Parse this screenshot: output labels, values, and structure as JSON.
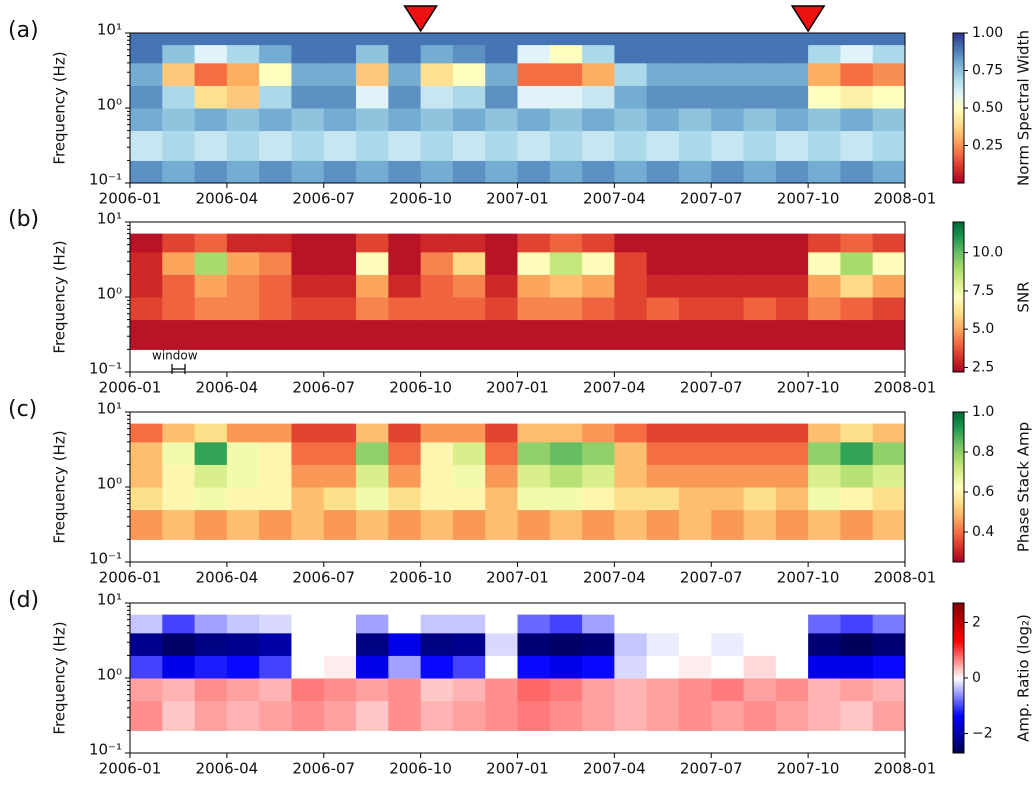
{
  "chart_data": [
    {
      "type": "heatmap",
      "panel_label": "(a)",
      "ylabel": "Frequency (Hz)",
      "colorbar_label": "Norm Spectral Width",
      "colormap": "RdYlBu",
      "zlim": [
        0,
        1
      ],
      "colorbar_ticks": [
        0.25,
        {
          "value": 0.5,
          "label": "0.50"
        },
        0.75,
        {
          "value": 1,
          "label": "1.00"
        }
      ],
      "xlim": [
        "2006-01",
        "2008-01"
      ],
      "xticks": [
        "2006-01",
        "2006-04",
        "2006-07",
        "2006-10",
        "2007-01",
        "2007-04",
        "2007-07",
        "2007-10",
        "2008-01"
      ],
      "log_y": true,
      "ylim": [
        0.1,
        10
      ],
      "yticks": [
        {
          "value": 0.1,
          "label": "10⁻¹"
        },
        {
          "value": 1,
          "label": "10⁰"
        },
        {
          "value": 10,
          "label": "10¹"
        }
      ],
      "markers": [
        "2006-10",
        "2007-10"
      ],
      "marker_color": "#ee1111",
      "x": [
        "2006-01",
        "2006-02",
        "2006-03",
        "2006-04",
        "2006-05",
        "2006-06",
        "2006-07",
        "2006-08",
        "2006-09",
        "2006-10",
        "2006-11",
        "2006-12",
        "2007-01",
        "2007-02",
        "2007-03",
        "2007-04",
        "2007-05",
        "2007-06",
        "2007-07",
        "2007-08",
        "2007-09",
        "2007-10",
        "2007-11",
        "2007-12"
      ],
      "y_edges": [
        0.1,
        0.2,
        0.5,
        1,
        2,
        4,
        7,
        10
      ],
      "z": [
        [
          0.85,
          0.8,
          0.85,
          0.8,
          0.85,
          0.8,
          0.85,
          0.8,
          0.85,
          0.8,
          0.85,
          0.8,
          0.85,
          0.8,
          0.85,
          0.8,
          0.85,
          0.8,
          0.85,
          0.8,
          0.85,
          0.8,
          0.85,
          0.8
        ],
        [
          0.65,
          0.7,
          0.65,
          0.7,
          0.65,
          0.7,
          0.65,
          0.7,
          0.65,
          0.7,
          0.65,
          0.7,
          0.65,
          0.7,
          0.65,
          0.7,
          0.65,
          0.7,
          0.65,
          0.7,
          0.65,
          0.7,
          0.65,
          0.7
        ],
        [
          0.8,
          0.75,
          0.8,
          0.75,
          0.8,
          0.75,
          0.8,
          0.75,
          0.8,
          0.75,
          0.8,
          0.75,
          0.8,
          0.75,
          0.8,
          0.75,
          0.8,
          0.75,
          0.8,
          0.75,
          0.8,
          0.75,
          0.8,
          0.75
        ],
        [
          0.85,
          0.7,
          0.4,
          0.35,
          0.7,
          0.85,
          0.85,
          0.6,
          0.85,
          0.65,
          0.7,
          0.85,
          0.6,
          0.6,
          0.65,
          0.8,
          0.85,
          0.85,
          0.85,
          0.85,
          0.85,
          0.5,
          0.45,
          0.5
        ],
        [
          0.8,
          0.35,
          0.2,
          0.3,
          0.5,
          0.8,
          0.8,
          0.35,
          0.8,
          0.4,
          0.5,
          0.8,
          0.2,
          0.2,
          0.3,
          0.7,
          0.8,
          0.8,
          0.8,
          0.8,
          0.8,
          0.3,
          0.2,
          0.25
        ],
        [
          0.9,
          0.75,
          0.6,
          0.7,
          0.8,
          0.9,
          0.9,
          0.75,
          0.9,
          0.8,
          0.85,
          0.9,
          0.6,
          0.5,
          0.7,
          0.9,
          0.9,
          0.9,
          0.9,
          0.9,
          0.9,
          0.7,
          0.6,
          0.7
        ],
        [
          0.9,
          0.9,
          0.9,
          0.9,
          0.9,
          0.9,
          0.9,
          0.9,
          0.9,
          0.9,
          0.9,
          0.9,
          0.9,
          0.9,
          0.9,
          0.9,
          0.9,
          0.9,
          0.9,
          0.9,
          0.9,
          0.9,
          0.9,
          0.9
        ]
      ]
    },
    {
      "type": "heatmap",
      "panel_label": "(b)",
      "ylabel": "Frequency (Hz)",
      "colorbar_label": "SNR",
      "annotation": "window",
      "colormap": "RdYlGn",
      "zlim": [
        2.2,
        12
      ],
      "colorbar_ticks": [
        2.5,
        {
          "value": 5,
          "label": "5.0"
        },
        7.5,
        {
          "value": 10,
          "label": "10.0"
        }
      ],
      "xlim": [
        "2006-01",
        "2008-01"
      ],
      "xticks": [
        "2006-01",
        "2006-04",
        "2006-07",
        "2006-10",
        "2007-01",
        "2007-04",
        "2007-07",
        "2007-10",
        "2008-01"
      ],
      "log_y": true,
      "ylim": [
        0.1,
        10
      ],
      "yticks": [
        {
          "value": 0.1,
          "label": "10⁻¹"
        },
        {
          "value": 1,
          "label": "10⁰"
        },
        {
          "value": 10,
          "label": "10¹"
        }
      ],
      "x": [
        "2006-01",
        "2006-02",
        "2006-03",
        "2006-04",
        "2006-05",
        "2006-06",
        "2006-07",
        "2006-08",
        "2006-09",
        "2006-10",
        "2006-11",
        "2006-12",
        "2007-01",
        "2007-02",
        "2007-03",
        "2007-04",
        "2007-05",
        "2007-06",
        "2007-07",
        "2007-08",
        "2007-09",
        "2007-10",
        "2007-11",
        "2007-12"
      ],
      "y_edges": [
        0.1,
        0.2,
        0.5,
        1,
        2,
        4,
        7,
        10
      ],
      "z": [
        [
          null,
          null,
          null,
          null,
          null,
          null,
          null,
          null,
          null,
          null,
          null,
          null,
          null,
          null,
          null,
          null,
          null,
          null,
          null,
          null,
          null,
          null,
          null,
          null
        ],
        [
          2.6,
          2.6,
          2.6,
          2.6,
          2.6,
          2.6,
          2.6,
          2.6,
          2.6,
          2.6,
          2.6,
          2.6,
          2.6,
          2.6,
          2.6,
          2.6,
          2.6,
          2.6,
          2.6,
          2.6,
          2.6,
          2.6,
          2.6,
          2.6
        ],
        [
          3.5,
          4,
          4.5,
          4.5,
          4,
          3.5,
          3.5,
          4.5,
          4,
          4,
          4,
          3.5,
          4.5,
          4.5,
          4,
          3.5,
          4,
          3.5,
          3.5,
          4,
          3.5,
          4.5,
          4,
          3.5
        ],
        [
          3,
          4,
          5,
          4.5,
          4,
          3,
          3,
          5,
          3,
          4,
          4.5,
          3,
          5,
          5.5,
          5,
          3.5,
          3,
          3,
          3,
          3,
          3,
          5,
          6,
          5
        ],
        [
          3,
          5,
          9,
          5,
          4.5,
          2.6,
          2.6,
          7,
          2.6,
          4.5,
          6,
          2.6,
          7,
          8.5,
          7,
          3.5,
          2.6,
          2.6,
          2.6,
          2.6,
          2.6,
          7,
          9,
          7
        ],
        [
          2.6,
          3.5,
          4,
          3,
          3,
          2.6,
          2.6,
          3.5,
          2.6,
          3,
          3,
          2.6,
          3.5,
          4,
          3.5,
          2.6,
          2.6,
          2.6,
          2.6,
          2.6,
          2.6,
          3.5,
          4,
          3.5
        ],
        [
          null,
          null,
          null,
          null,
          null,
          null,
          null,
          null,
          null,
          null,
          null,
          null,
          null,
          null,
          null,
          null,
          null,
          null,
          null,
          null,
          null,
          null,
          null,
          null
        ]
      ]
    },
    {
      "type": "heatmap",
      "panel_label": "(c)",
      "ylabel": "Frequency (Hz)",
      "colorbar_label": "Phase Stack Amp",
      "colormap": "RdYlGn",
      "zlim": [
        0.25,
        1
      ],
      "colorbar_ticks": [
        0.4,
        0.6,
        0.8,
        {
          "value": 1,
          "label": "1.0"
        }
      ],
      "xlim": [
        "2006-01",
        "2008-01"
      ],
      "xticks": [
        "2006-01",
        "2006-04",
        "2006-07",
        "2006-10",
        "2007-01",
        "2007-04",
        "2007-07",
        "2007-10",
        "2008-01"
      ],
      "log_y": true,
      "ylim": [
        0.1,
        10
      ],
      "yticks": [
        {
          "value": 0.1,
          "label": "10⁻¹"
        },
        {
          "value": 1,
          "label": "10⁰"
        },
        {
          "value": 10,
          "label": "10¹"
        }
      ],
      "x": [
        "2006-01",
        "2006-02",
        "2006-03",
        "2006-04",
        "2006-05",
        "2006-06",
        "2006-07",
        "2006-08",
        "2006-09",
        "2006-10",
        "2006-11",
        "2006-12",
        "2007-01",
        "2007-02",
        "2007-03",
        "2007-04",
        "2007-05",
        "2007-06",
        "2007-07",
        "2007-08",
        "2007-09",
        "2007-10",
        "2007-11",
        "2007-12"
      ],
      "y_edges": [
        0.1,
        0.2,
        0.5,
        1,
        2,
        4,
        7,
        10
      ],
      "z": [
        [
          null,
          null,
          null,
          null,
          null,
          null,
          null,
          null,
          null,
          null,
          null,
          null,
          null,
          null,
          null,
          null,
          null,
          null,
          null,
          null,
          null,
          null,
          null,
          null
        ],
        [
          0.45,
          0.5,
          0.45,
          0.5,
          0.45,
          0.5,
          0.45,
          0.5,
          0.45,
          0.5,
          0.45,
          0.5,
          0.45,
          0.5,
          0.45,
          0.5,
          0.45,
          0.5,
          0.45,
          0.5,
          0.45,
          0.5,
          0.45,
          0.5
        ],
        [
          0.55,
          0.6,
          0.65,
          0.6,
          0.6,
          0.5,
          0.55,
          0.65,
          0.55,
          0.6,
          0.6,
          0.5,
          0.65,
          0.65,
          0.6,
          0.55,
          0.55,
          0.5,
          0.5,
          0.55,
          0.5,
          0.65,
          0.6,
          0.55
        ],
        [
          0.5,
          0.6,
          0.7,
          0.65,
          0.6,
          0.45,
          0.45,
          0.7,
          0.45,
          0.6,
          0.65,
          0.45,
          0.7,
          0.75,
          0.7,
          0.5,
          0.45,
          0.45,
          0.45,
          0.45,
          0.45,
          0.7,
          0.75,
          0.7
        ],
        [
          0.5,
          0.65,
          0.9,
          0.65,
          0.6,
          0.4,
          0.4,
          0.8,
          0.4,
          0.6,
          0.7,
          0.4,
          0.8,
          0.85,
          0.8,
          0.5,
          0.4,
          0.4,
          0.4,
          0.4,
          0.4,
          0.8,
          0.9,
          0.8
        ],
        [
          0.4,
          0.5,
          0.55,
          0.45,
          0.45,
          0.35,
          0.35,
          0.5,
          0.35,
          0.45,
          0.45,
          0.35,
          0.5,
          0.5,
          0.45,
          0.4,
          0.35,
          0.35,
          0.35,
          0.35,
          0.35,
          0.5,
          0.55,
          0.5
        ],
        [
          null,
          null,
          null,
          null,
          null,
          null,
          null,
          null,
          null,
          null,
          null,
          null,
          null,
          null,
          null,
          null,
          null,
          null,
          null,
          null,
          null,
          null,
          null,
          null
        ]
      ]
    },
    {
      "type": "heatmap",
      "panel_label": "(d)",
      "ylabel": "Frequency (Hz)",
      "colorbar_label": "Amp. Ratio  (log₂)",
      "colormap": "seismic",
      "zlim": [
        -2.7,
        2.7
      ],
      "colorbar_ticks": [
        {
          "value": -2,
          "label": "−2"
        },
        0,
        2
      ],
      "xlim": [
        "2006-01",
        "2008-01"
      ],
      "xticks": [
        "2006-01",
        "2006-04",
        "2006-07",
        "2006-10",
        "2007-01",
        "2007-04",
        "2007-07",
        "2007-10",
        "2008-01"
      ],
      "log_y": true,
      "ylim": [
        0.1,
        10
      ],
      "yticks": [
        {
          "value": 0.1,
          "label": "10⁻¹"
        },
        {
          "value": 1,
          "label": "10⁰"
        },
        {
          "value": 10,
          "label": "10¹"
        }
      ],
      "x": [
        "2006-01",
        "2006-02",
        "2006-03",
        "2006-04",
        "2006-05",
        "2006-06",
        "2006-07",
        "2006-08",
        "2006-09",
        "2006-10",
        "2006-11",
        "2006-12",
        "2007-01",
        "2007-02",
        "2007-03",
        "2007-04",
        "2007-05",
        "2007-06",
        "2007-07",
        "2007-08",
        "2007-09",
        "2007-10",
        "2007-11",
        "2007-12"
      ],
      "y_edges": [
        0.1,
        0.2,
        0.5,
        1,
        2,
        4,
        7,
        10
      ],
      "z": [
        [
          null,
          null,
          null,
          null,
          null,
          null,
          null,
          null,
          null,
          null,
          null,
          null,
          null,
          null,
          null,
          null,
          null,
          null,
          null,
          null,
          null,
          null,
          null,
          null
        ],
        [
          0.6,
          0.3,
          0.5,
          0.4,
          0.5,
          0.6,
          0.5,
          0.3,
          0.6,
          0.4,
          0.5,
          0.6,
          0.7,
          0.6,
          0.5,
          0.4,
          0.5,
          0.6,
          0.5,
          0.6,
          0.5,
          0.4,
          0.3,
          0.5
        ],
        [
          0.5,
          0.4,
          0.6,
          0.5,
          0.4,
          0.7,
          0.6,
          0.5,
          0.6,
          0.3,
          0.4,
          0.6,
          0.8,
          0.7,
          0.5,
          0.4,
          0.5,
          0.6,
          0.7,
          0.5,
          0.6,
          0.4,
          0.5,
          0.4
        ],
        [
          -1,
          -1.5,
          -1.2,
          -1.3,
          -1,
          0,
          0.1,
          -1.5,
          -0.5,
          -1.3,
          -1,
          0,
          -1.3,
          -1.5,
          -1.3,
          -0.2,
          0,
          0.1,
          0,
          0.2,
          0,
          -1.5,
          -1.5,
          -1.3
        ],
        [
          -2.2,
          -2.5,
          -2.3,
          -2.2,
          -2,
          0,
          0,
          -2.3,
          -1.5,
          -2.3,
          -2.2,
          -0.2,
          -2.4,
          -2.5,
          -2.4,
          -0.3,
          -0.1,
          0,
          -0.1,
          0,
          0,
          -2.4,
          -2.6,
          -2.4
        ],
        [
          -0.3,
          -1,
          -0.5,
          -0.3,
          -0.2,
          0,
          0,
          -0.5,
          0,
          -0.3,
          -0.3,
          0,
          -0.8,
          -1,
          -0.5,
          0,
          0,
          0,
          0,
          0,
          0,
          -0.8,
          -1,
          -0.7
        ],
        [
          null,
          null,
          null,
          null,
          null,
          null,
          null,
          null,
          null,
          null,
          null,
          null,
          null,
          null,
          null,
          null,
          null,
          null,
          null,
          null,
          null,
          null,
          null,
          null
        ]
      ]
    }
  ]
}
